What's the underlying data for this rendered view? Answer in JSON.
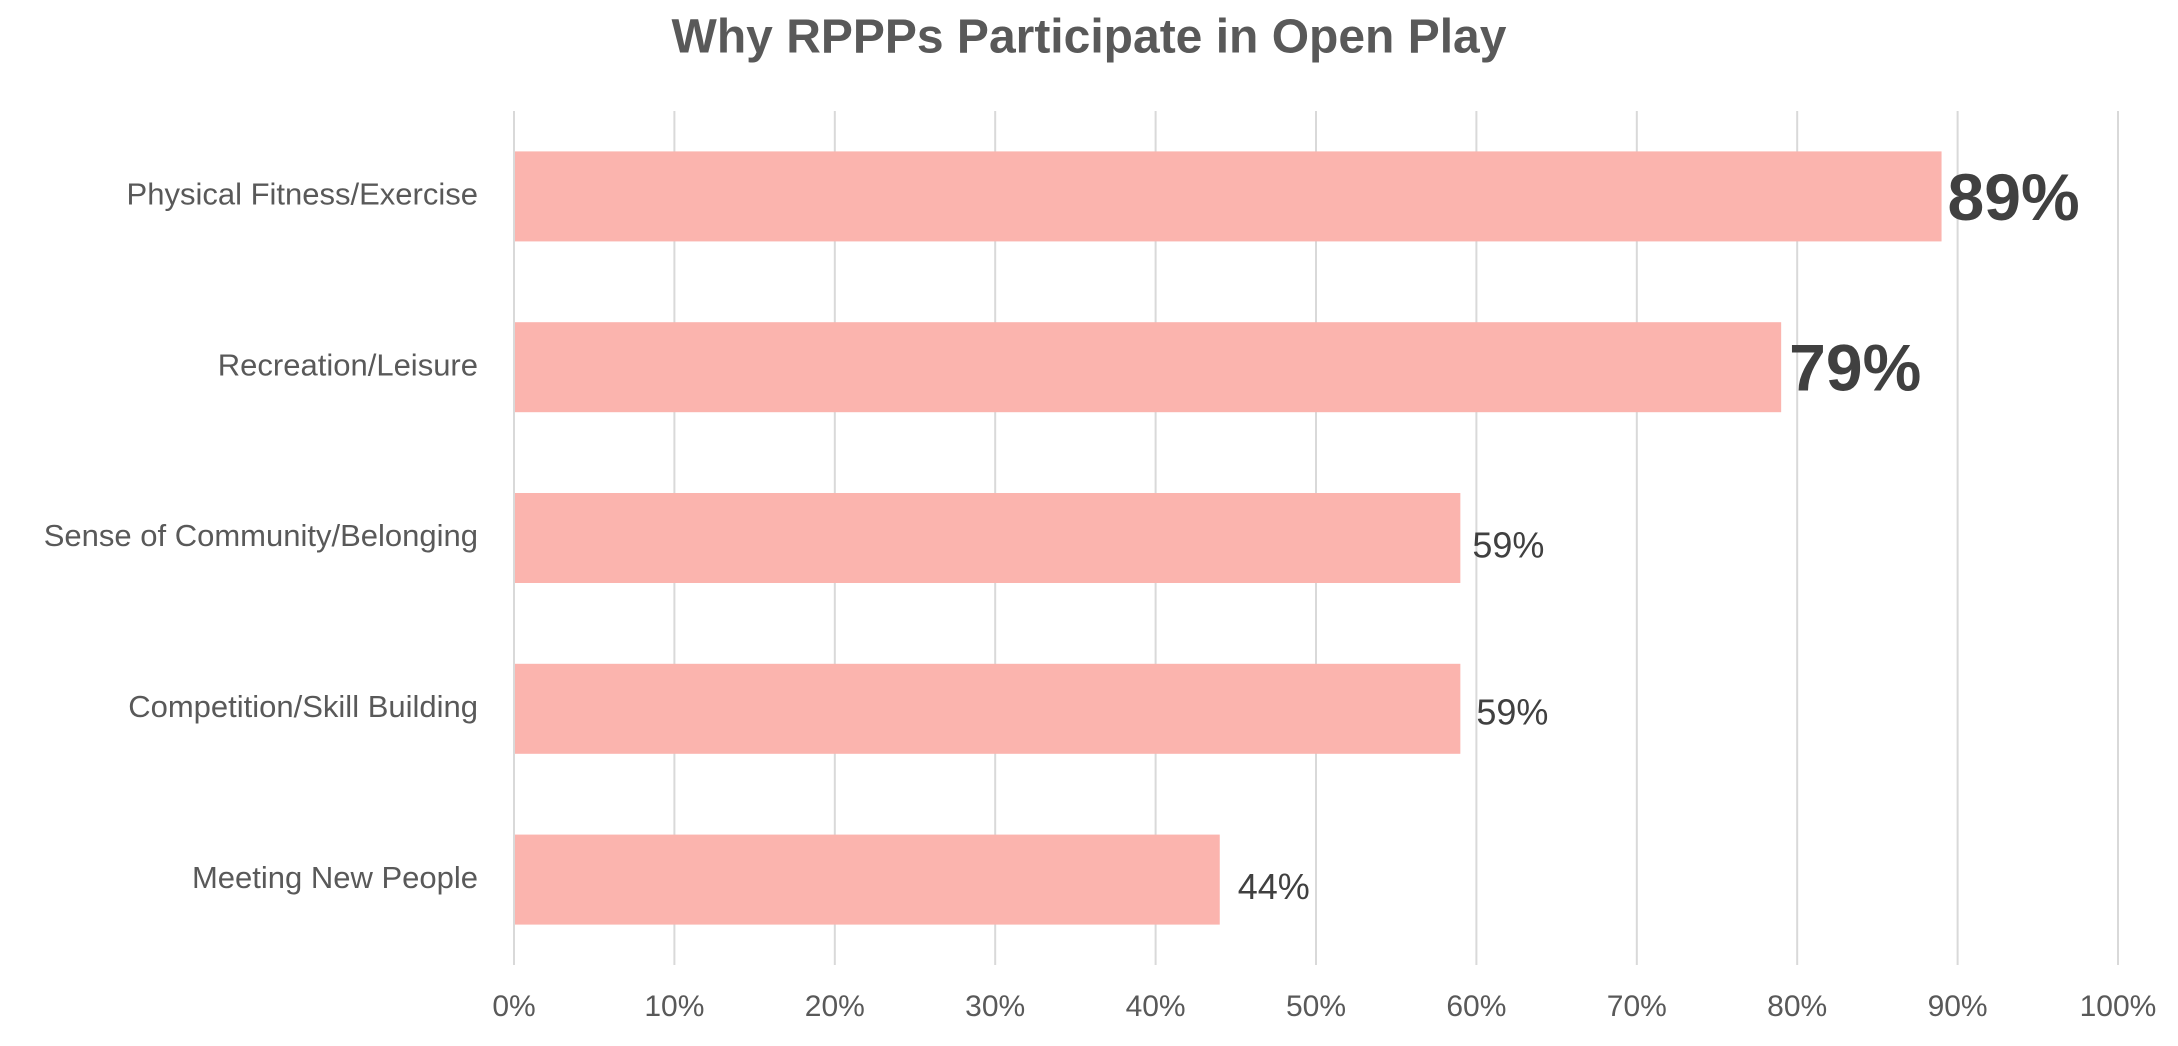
{
  "chart_data": {
    "type": "barh",
    "title": "Why RPPPs Participate in Open Play",
    "categories": [
      "Physical Fitness/Exercise",
      "Recreation/Leisure",
      "Sense of Community/Belonging",
      "Competition/Skill Building",
      "Meeting New People"
    ],
    "values": [
      89,
      79,
      59,
      59,
      44
    ],
    "value_labels": [
      "89%",
      "79%",
      "59%",
      "59%",
      "44%"
    ],
    "color": "#fbb4ae",
    "xlim": [
      0,
      100
    ],
    "xticks": [
      {
        "value": 0,
        "label": "0%"
      },
      {
        "value": 10,
        "label": "10%"
      },
      {
        "value": 20,
        "label": "20%"
      },
      {
        "value": 30,
        "label": "30%"
      },
      {
        "value": 40,
        "label": "40%"
      },
      {
        "value": 50,
        "label": "50%"
      },
      {
        "value": 60,
        "label": "60%"
      },
      {
        "value": 70,
        "label": "70%"
      },
      {
        "value": 80,
        "label": "80%"
      },
      {
        "value": 90,
        "label": "90%"
      },
      {
        "value": 100,
        "label": "100%"
      }
    ],
    "grid": true
  }
}
